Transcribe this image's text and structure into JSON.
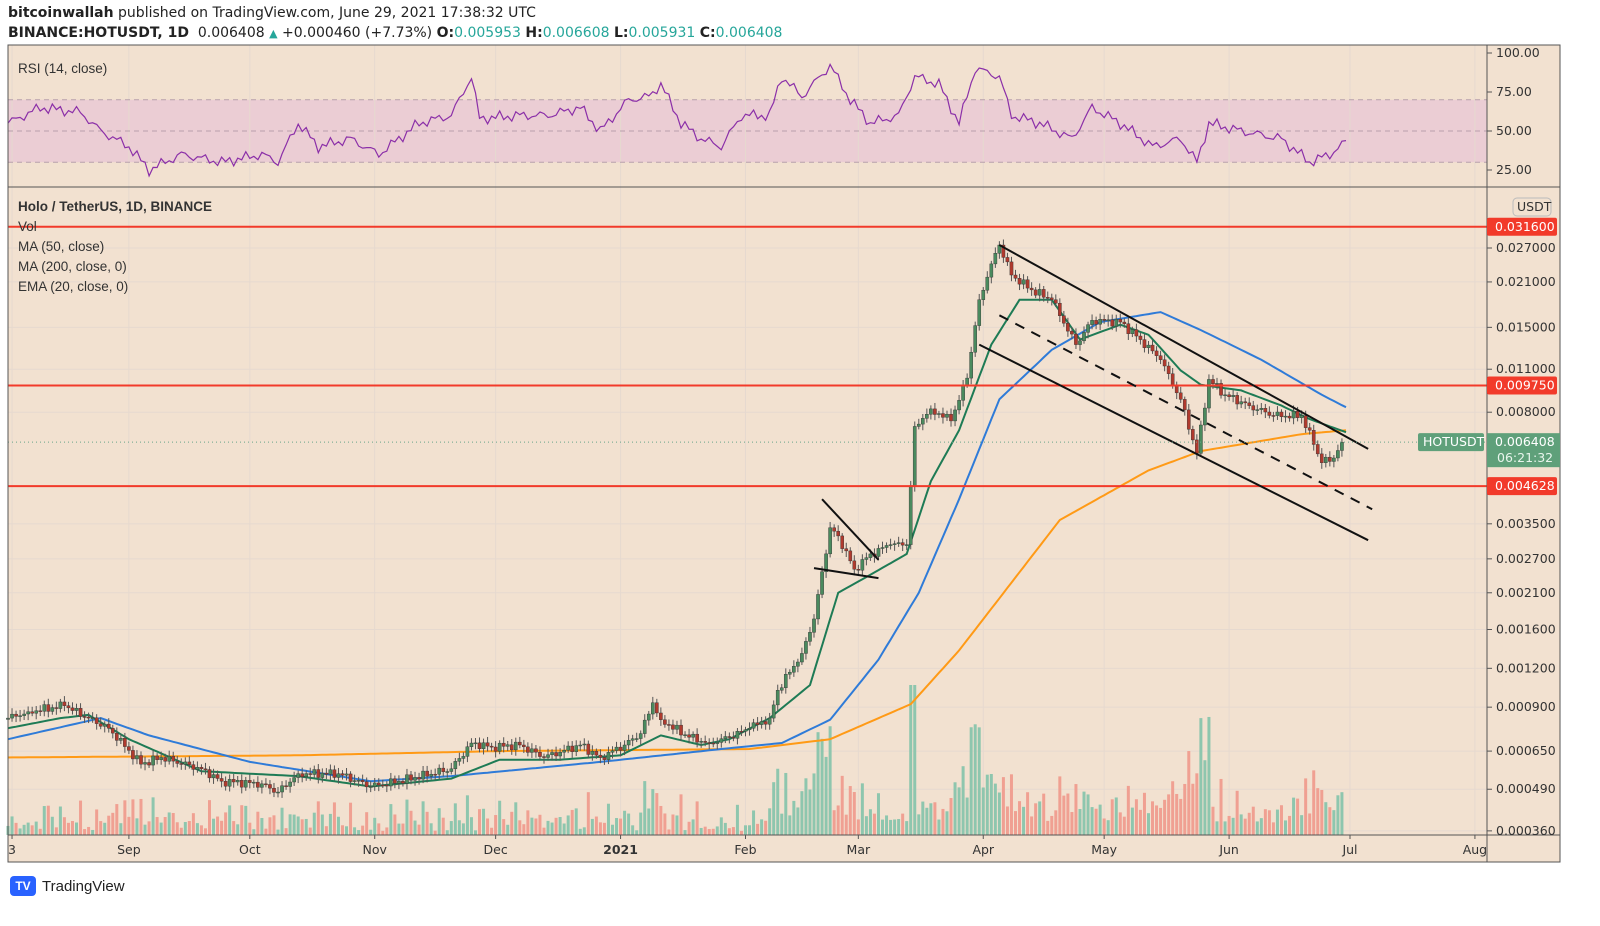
{
  "header": {
    "author": "bitcoinwallah",
    "published": "published on TradingView.com, June 29, 2021 17:38:32 UTC",
    "symbol": "BINANCE:HOTUSDT, 1D",
    "last": "0.006408",
    "change": "+0.000460 (+7.73%)",
    "o_label": "O:",
    "o": "0.005953",
    "h_label": "H:",
    "h": "0.006608",
    "l_label": "L:",
    "l": "0.005931",
    "c_label": "C:",
    "c": "0.006408"
  },
  "legend": {
    "rsi": "RSI (14, close)",
    "title": "Holo / TetherUS, 1D, BINANCE",
    "vol": "Vol",
    "ma50": "MA (50, close)",
    "ma200": "MA (200, close, 0)",
    "ema20": "EMA (20, close, 0)"
  },
  "price_axis": {
    "currency": "USDT",
    "ticks": [
      "0.027000",
      "0.021000",
      "0.015000",
      "0.011000",
      "0.008000",
      "0.003500",
      "0.002700",
      "0.002100",
      "0.001600",
      "0.001200",
      "0.000900",
      "0.000650",
      "0.000490",
      "0.000360"
    ],
    "levels": [
      "0.031600",
      "0.009750",
      "0.004628"
    ],
    "last_symbol": "HOTUSDT",
    "last_price": "0.006408",
    "countdown": "06:21:32"
  },
  "rsi_axis": {
    "ticks": [
      "100.00",
      "75.00",
      "50.00",
      "25.00"
    ]
  },
  "time_axis": [
    {
      "label": "3",
      "day": 1
    },
    {
      "label": "Sep",
      "day": 30
    },
    {
      "label": "Oct",
      "day": 60
    },
    {
      "label": "Nov",
      "day": 91
    },
    {
      "label": "Dec",
      "day": 121
    },
    {
      "label": "2021",
      "day": 152,
      "bold": true
    },
    {
      "label": "Feb",
      "day": 183
    },
    {
      "label": "Mar",
      "day": 211
    },
    {
      "label": "Apr",
      "day": 242
    },
    {
      "label": "May",
      "day": 272
    },
    {
      "label": "Jun",
      "day": 303
    },
    {
      "label": "Jul",
      "day": 333
    },
    {
      "label": "Aug",
      "day": 364
    }
  ],
  "footer": {
    "brand": "TradingView"
  },
  "colors": {
    "up": "#4a8a5e",
    "down": "#b03a2e",
    "ema20": "#1e7b55",
    "ma50": "#2f7bd8",
    "ma200": "#ff9a16",
    "level": "#f23a2a",
    "bg": "#f2e1d0",
    "rsi": "#8b2fa8"
  },
  "chart_data": {
    "type": "candlestick",
    "title": "Holo / TetherUS, 1D, BINANCE",
    "scale": "log",
    "x_unit": "days since 2020-08-02",
    "close_anchors": [
      [
        0,
        0.00083
      ],
      [
        5,
        0.00087
      ],
      [
        14,
        0.00091
      ],
      [
        20,
        0.00083
      ],
      [
        25,
        0.00077
      ],
      [
        33,
        0.00059
      ],
      [
        38,
        0.00062
      ],
      [
        48,
        0.00057
      ],
      [
        53,
        0.00052
      ],
      [
        63,
        0.00051
      ],
      [
        67,
        0.00048
      ],
      [
        72,
        0.00055
      ],
      [
        82,
        0.00055
      ],
      [
        90,
        0.0005
      ],
      [
        97,
        0.00052
      ],
      [
        110,
        0.00057
      ],
      [
        115,
        0.00069
      ],
      [
        120,
        0.00067
      ],
      [
        127,
        0.00068
      ],
      [
        133,
        0.00062
      ],
      [
        142,
        0.00068
      ],
      [
        147,
        0.00062
      ],
      [
        153,
        0.00068
      ],
      [
        157,
        0.00074
      ],
      [
        160,
        0.00093
      ],
      [
        162,
        0.00082
      ],
      [
        169,
        0.00072
      ],
      [
        174,
        0.00069
      ],
      [
        179,
        0.00072
      ],
      [
        184,
        0.00077
      ],
      [
        189,
        0.00083
      ],
      [
        191,
        0.00102
      ],
      [
        197,
        0.00134
      ],
      [
        200,
        0.00173
      ],
      [
        204,
        0.0034
      ],
      [
        206,
        0.0032
      ],
      [
        210,
        0.0025
      ],
      [
        214,
        0.0028
      ],
      [
        219,
        0.003
      ],
      [
        223,
        0.003
      ],
      [
        225,
        0.0072
      ],
      [
        229,
        0.0082
      ],
      [
        234,
        0.0075
      ],
      [
        238,
        0.0103
      ],
      [
        241,
        0.0184
      ],
      [
        244,
        0.024
      ],
      [
        246,
        0.0276
      ],
      [
        249,
        0.0221
      ],
      [
        254,
        0.0198
      ],
      [
        259,
        0.0184
      ],
      [
        265,
        0.0132
      ],
      [
        269,
        0.0158
      ],
      [
        276,
        0.0156
      ],
      [
        281,
        0.0137
      ],
      [
        286,
        0.0118
      ],
      [
        291,
        0.0088
      ],
      [
        295,
        0.0059
      ],
      [
        298,
        0.0102
      ],
      [
        302,
        0.0091
      ],
      [
        308,
        0.0084
      ],
      [
        314,
        0.0078
      ],
      [
        321,
        0.0078
      ],
      [
        324,
        0.0063
      ],
      [
        326,
        0.0055
      ],
      [
        329,
        0.0057
      ],
      [
        331,
        0.006408
      ]
    ],
    "ema20": [
      [
        0,
        0.00077
      ],
      [
        13,
        0.00083
      ],
      [
        20,
        0.00085
      ],
      [
        30,
        0.00071
      ],
      [
        48,
        0.00056
      ],
      [
        72,
        0.00054
      ],
      [
        90,
        0.0005
      ],
      [
        110,
        0.00053
      ],
      [
        122,
        0.00061
      ],
      [
        137,
        0.00061
      ],
      [
        152,
        0.00063
      ],
      [
        162,
        0.00073
      ],
      [
        172,
        0.00068
      ],
      [
        179,
        0.00071
      ],
      [
        189,
        0.00083
      ],
      [
        199,
        0.00106
      ],
      [
        206,
        0.0021
      ],
      [
        214,
        0.0024
      ],
      [
        223,
        0.0028
      ],
      [
        229,
        0.0048
      ],
      [
        236,
        0.007
      ],
      [
        244,
        0.0132
      ],
      [
        251,
        0.0184
      ],
      [
        259,
        0.0184
      ],
      [
        266,
        0.0137
      ],
      [
        276,
        0.0153
      ],
      [
        283,
        0.0142
      ],
      [
        291,
        0.0109
      ],
      [
        296,
        0.0098
      ],
      [
        306,
        0.0094
      ],
      [
        316,
        0.0084
      ],
      [
        323,
        0.0076
      ],
      [
        332,
        0.0069
      ]
    ],
    "ma50": [
      [
        0,
        0.00071
      ],
      [
        23,
        0.00083
      ],
      [
        35,
        0.00073
      ],
      [
        60,
        0.0006
      ],
      [
        90,
        0.00052
      ],
      [
        110,
        0.00054
      ],
      [
        147,
        0.0006
      ],
      [
        177,
        0.00066
      ],
      [
        192,
        0.00069
      ],
      [
        204,
        0.00082
      ],
      [
        216,
        0.00128
      ],
      [
        226,
        0.0021
      ],
      [
        236,
        0.0042
      ],
      [
        246,
        0.0088
      ],
      [
        259,
        0.0127
      ],
      [
        271,
        0.0156
      ],
      [
        286,
        0.0168
      ],
      [
        296,
        0.0147
      ],
      [
        311,
        0.0118
      ],
      [
        326,
        0.0091
      ],
      [
        332,
        0.0083
      ]
    ],
    "ma200": [
      [
        0,
        0.00062
      ],
      [
        72,
        0.00063
      ],
      [
        122,
        0.00065
      ],
      [
        184,
        0.00066
      ],
      [
        204,
        0.00071
      ],
      [
        224,
        0.00092
      ],
      [
        236,
        0.00137
      ],
      [
        261,
        0.0036
      ],
      [
        283,
        0.0052
      ],
      [
        296,
        0.006
      ],
      [
        321,
        0.0068
      ],
      [
        332,
        0.007
      ]
    ],
    "horizontal_levels": [
      0.0316,
      0.00975,
      0.004628
    ],
    "trendlines": [
      {
        "style": "solid",
        "points": [
          [
            246,
            0.0276
          ],
          [
            337.5,
            0.0061
          ]
        ]
      },
      {
        "style": "dashed",
        "points": [
          [
            246,
            0.0164
          ],
          [
            338.5,
            0.0039
          ]
        ]
      },
      {
        "style": "solid",
        "points": [
          [
            241,
            0.0132
          ],
          [
            337.5,
            0.0031
          ]
        ]
      },
      {
        "style": "solid",
        "points": [
          [
            202,
            0.0042
          ],
          [
            216,
            0.00268
          ]
        ]
      },
      {
        "style": "solid",
        "points": [
          [
            200,
            0.00252
          ],
          [
            216,
            0.00234
          ]
        ]
      }
    ],
    "rsi": {
      "range": [
        0,
        100
      ],
      "band": [
        30,
        70
      ],
      "anchors": [
        [
          0,
          55
        ],
        [
          8,
          65
        ],
        [
          18,
          62
        ],
        [
          23,
          50
        ],
        [
          30,
          40
        ],
        [
          35,
          25
        ],
        [
          43,
          35
        ],
        [
          53,
          30
        ],
        [
          63,
          35
        ],
        [
          67,
          30
        ],
        [
          72,
          55
        ],
        [
          77,
          40
        ],
        [
          85,
          45
        ],
        [
          92,
          35
        ],
        [
          102,
          55
        ],
        [
          110,
          60
        ],
        [
          115,
          85
        ],
        [
          117,
          58
        ],
        [
          127,
          60
        ],
        [
          134,
          60
        ],
        [
          142,
          65
        ],
        [
          147,
          50
        ],
        [
          154,
          70
        ],
        [
          159,
          72
        ],
        [
          162,
          80
        ],
        [
          167,
          55
        ],
        [
          172,
          45
        ],
        [
          177,
          40
        ],
        [
          182,
          60
        ],
        [
          189,
          60
        ],
        [
          192,
          85
        ],
        [
          197,
          72
        ],
        [
          204,
          92
        ],
        [
          209,
          70
        ],
        [
          214,
          55
        ],
        [
          221,
          60
        ],
        [
          225,
          85
        ],
        [
          231,
          80
        ],
        [
          236,
          55
        ],
        [
          240,
          90
        ],
        [
          246,
          85
        ],
        [
          249,
          60
        ],
        [
          256,
          55
        ],
        [
          264,
          45
        ],
        [
          269,
          65
        ],
        [
          276,
          55
        ],
        [
          284,
          40
        ],
        [
          291,
          45
        ],
        [
          295,
          30
        ],
        [
          298,
          55
        ],
        [
          306,
          50
        ],
        [
          316,
          45
        ],
        [
          323,
          30
        ],
        [
          328,
          35
        ],
        [
          332,
          43
        ]
      ]
    }
  }
}
